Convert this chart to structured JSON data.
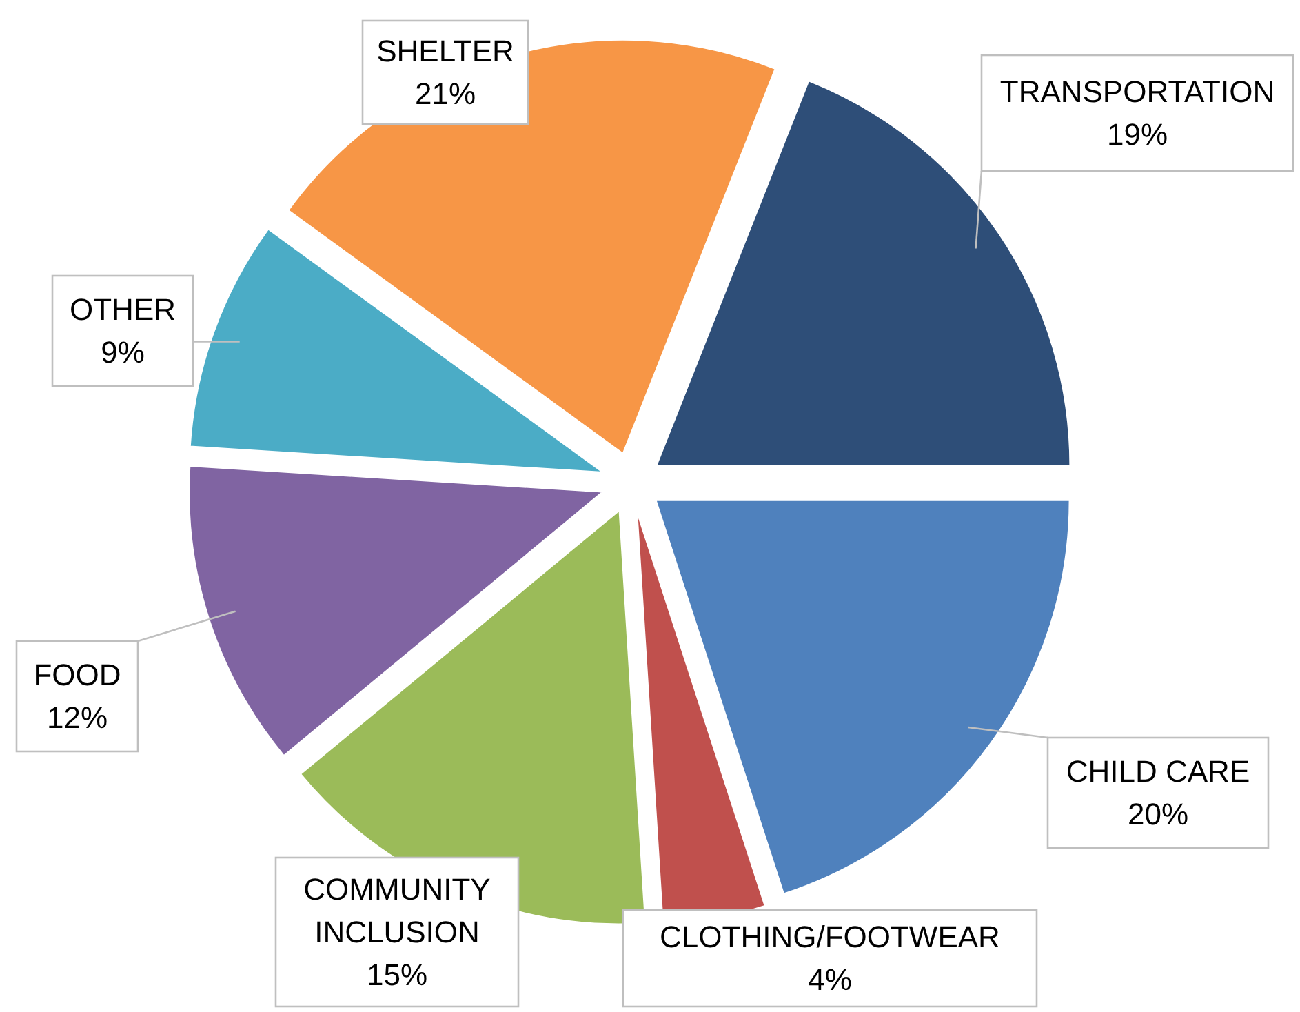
{
  "chart_data": {
    "type": "pie",
    "categories": [
      "TRANSPORTATION",
      "CHILD CARE",
      "CLOTHING/FOOTWEAR",
      "COMMUNITY INCLUSION",
      "FOOD",
      "OTHER",
      "SHELTER"
    ],
    "values": [
      19,
      20,
      4,
      15,
      12,
      9,
      21
    ],
    "colors": [
      "#2e4e78",
      "#4f81bd",
      "#c0504d",
      "#9bbb59",
      "#8064a2",
      "#4bacc6",
      "#f79646"
    ],
    "value_labels": [
      "19%",
      "20%",
      "4%",
      "15%",
      "12%",
      "9%",
      "21%"
    ]
  }
}
